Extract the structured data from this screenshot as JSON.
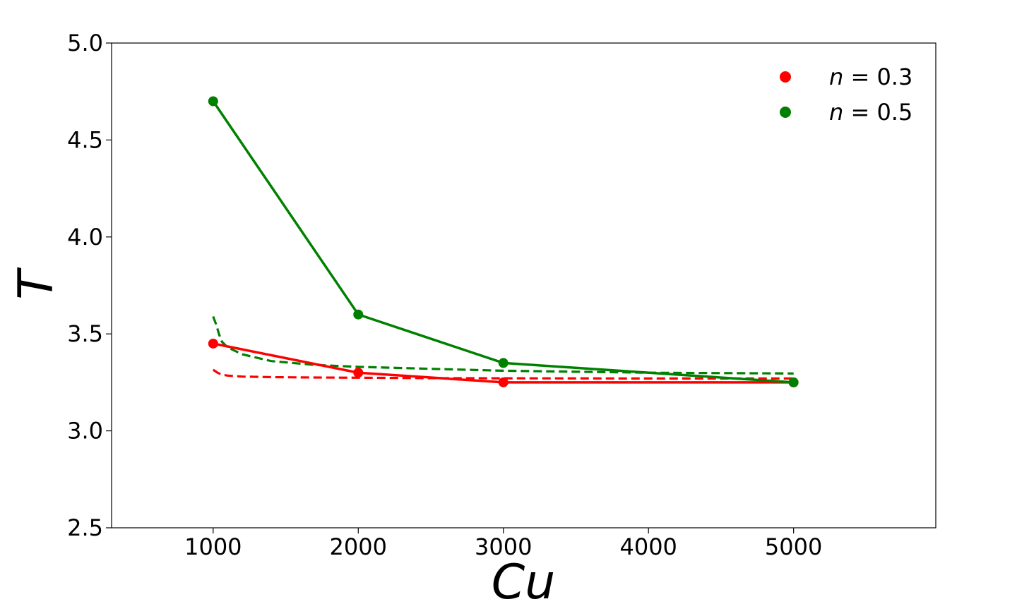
{
  "chart_data": {
    "type": "line",
    "xlabel": "Cu",
    "ylabel": "T",
    "xlim": [
      300,
      5980
    ],
    "ylim": [
      2.5,
      5.0
    ],
    "xticks": [
      1000,
      2000,
      3000,
      4000,
      5000
    ],
    "yticks": [
      2.5,
      3.0,
      3.5,
      4.0,
      4.5,
      5.0
    ],
    "ytick_labels": [
      "2.5",
      "3.0",
      "3.5",
      "4.0",
      "4.5",
      "5.0"
    ],
    "grid": false,
    "legend_placement": "top-right",
    "series": [
      {
        "name": "n = 0.3",
        "legend_var": "n",
        "legend_val": "= 0.3",
        "color": "#ff0000",
        "markers": true,
        "x": [
          1000,
          2000,
          3000,
          5000
        ],
        "y": [
          3.45,
          3.3,
          3.25,
          3.25
        ]
      },
      {
        "name": "n = 0.5",
        "legend_var": "n",
        "legend_val": "= 0.5",
        "color": "#008000",
        "markers": true,
        "x": [
          1000,
          2000,
          3000,
          5000
        ],
        "y": [
          4.7,
          3.6,
          3.35,
          3.25
        ]
      }
    ],
    "fit_curves": [
      {
        "color": "#ff0000",
        "style": "dashed",
        "x": [
          1000,
          1030,
          1060,
          1100,
          1200,
          1400,
          1700,
          2000,
          2500,
          3000,
          4000,
          5000
        ],
        "y": [
          3.315,
          3.3,
          3.29,
          3.285,
          3.28,
          3.277,
          3.275,
          3.274,
          3.272,
          3.271,
          3.27,
          3.27
        ]
      },
      {
        "color": "#008000",
        "style": "dashed",
        "x": [
          1000,
          1020,
          1040,
          1060,
          1100,
          1200,
          1400,
          1700,
          2000,
          2500,
          3000,
          4000,
          5000
        ],
        "y": [
          3.59,
          3.55,
          3.5,
          3.46,
          3.43,
          3.395,
          3.36,
          3.34,
          3.33,
          3.32,
          3.31,
          3.3,
          3.296
        ]
      }
    ]
  }
}
